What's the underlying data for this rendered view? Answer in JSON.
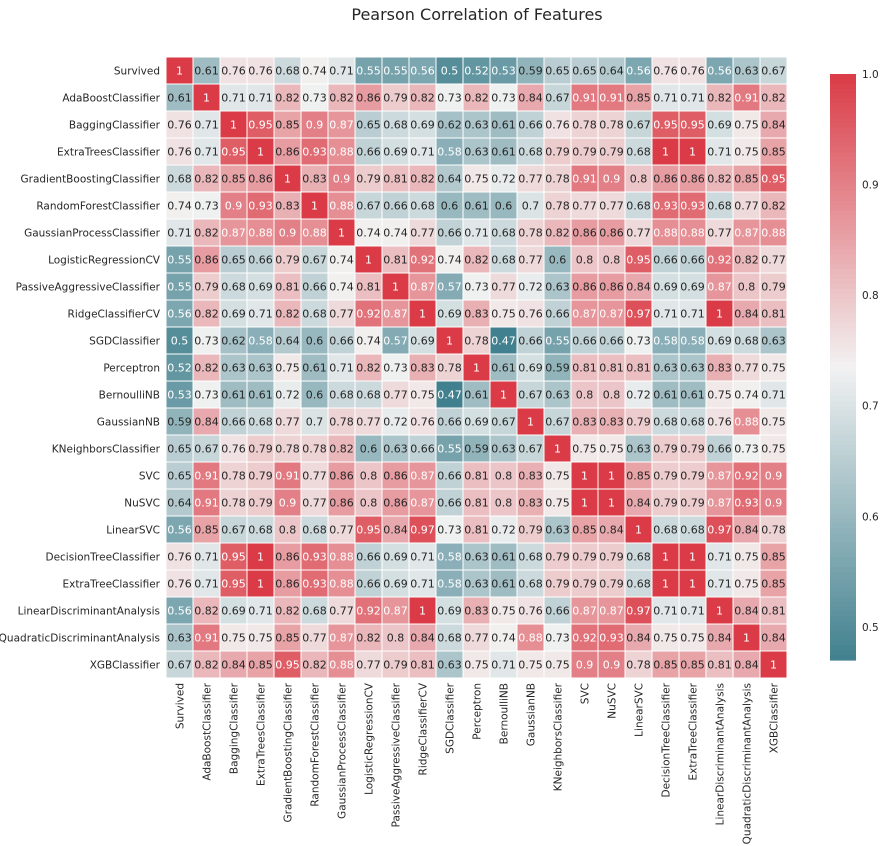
{
  "chart_data": {
    "type": "heatmap",
    "title": "Pearson Correlation of Features",
    "labels": [
      "Survived",
      "AdaBoostClassifier",
      "BaggingClassifier",
      "ExtraTreesClassifier",
      "GradientBoostingClassifier",
      "RandomForestClassifier",
      "GaussianProcessClassifier",
      "LogisticRegressionCV",
      "PassiveAggressiveClassifier",
      "RidgeClassifierCV",
      "SGDClassifier",
      "Perceptron",
      "BernoulliNB",
      "GaussianNB",
      "KNeighborsClassifier",
      "SVC",
      "NuSVC",
      "LinearSVC",
      "DecisionTreeClassifier",
      "ExtraTreeClassifier",
      "LinearDiscriminantAnalysis",
      "QuadraticDiscriminantAnalysis",
      "XGBClassifier"
    ],
    "matrix": [
      [
        1,
        0.61,
        0.76,
        0.76,
        0.68,
        0.74,
        0.71,
        0.55,
        0.55,
        0.56,
        0.5,
        0.52,
        0.53,
        0.59,
        0.65,
        0.65,
        0.64,
        0.56,
        0.76,
        0.76,
        0.56,
        0.63,
        0.67
      ],
      [
        0.61,
        1,
        0.71,
        0.71,
        0.82,
        0.73,
        0.82,
        0.86,
        0.79,
        0.82,
        0.73,
        0.82,
        0.73,
        0.84,
        0.67,
        0.91,
        0.91,
        0.85,
        0.71,
        0.71,
        0.82,
        0.91,
        0.82
      ],
      [
        0.76,
        0.71,
        1,
        0.95,
        0.85,
        0.9,
        0.87,
        0.65,
        0.68,
        0.69,
        0.62,
        0.63,
        0.61,
        0.66,
        0.76,
        0.78,
        0.78,
        0.67,
        0.95,
        0.95,
        0.69,
        0.75,
        0.84
      ],
      [
        0.76,
        0.71,
        0.95,
        1,
        0.86,
        0.93,
        0.88,
        0.66,
        0.69,
        0.71,
        0.58,
        0.63,
        0.61,
        0.68,
        0.79,
        0.79,
        0.79,
        0.68,
        1,
        1,
        0.71,
        0.75,
        0.85
      ],
      [
        0.68,
        0.82,
        0.85,
        0.86,
        1,
        0.83,
        0.9,
        0.79,
        0.81,
        0.82,
        0.64,
        0.75,
        0.72,
        0.77,
        0.78,
        0.91,
        0.9,
        0.8,
        0.86,
        0.86,
        0.82,
        0.85,
        0.95
      ],
      [
        0.74,
        0.73,
        0.9,
        0.93,
        0.83,
        1,
        0.88,
        0.67,
        0.66,
        0.68,
        0.6,
        0.61,
        0.6,
        0.7,
        0.78,
        0.77,
        0.77,
        0.68,
        0.93,
        0.93,
        0.68,
        0.77,
        0.82
      ],
      [
        0.71,
        0.82,
        0.87,
        0.88,
        0.9,
        0.88,
        1,
        0.74,
        0.74,
        0.77,
        0.66,
        0.71,
        0.68,
        0.78,
        0.82,
        0.86,
        0.86,
        0.77,
        0.88,
        0.88,
        0.77,
        0.87,
        0.88
      ],
      [
        0.55,
        0.86,
        0.65,
        0.66,
        0.79,
        0.67,
        0.74,
        1,
        0.81,
        0.92,
        0.74,
        0.82,
        0.68,
        0.77,
        0.6,
        0.8,
        0.8,
        0.95,
        0.66,
        0.66,
        0.92,
        0.82,
        0.77
      ],
      [
        0.55,
        0.79,
        0.68,
        0.69,
        0.81,
        0.66,
        0.74,
        0.81,
        1,
        0.87,
        0.57,
        0.73,
        0.77,
        0.72,
        0.63,
        0.86,
        0.86,
        0.84,
        0.69,
        0.69,
        0.87,
        0.8,
        0.79
      ],
      [
        0.56,
        0.82,
        0.69,
        0.71,
        0.82,
        0.68,
        0.77,
        0.92,
        0.87,
        1,
        0.69,
        0.83,
        0.75,
        0.76,
        0.66,
        0.87,
        0.87,
        0.97,
        0.71,
        0.71,
        1,
        0.84,
        0.81
      ],
      [
        0.5,
        0.73,
        0.62,
        0.58,
        0.64,
        0.6,
        0.66,
        0.74,
        0.57,
        0.69,
        1,
        0.78,
        0.47,
        0.66,
        0.55,
        0.66,
        0.66,
        0.73,
        0.58,
        0.58,
        0.69,
        0.68,
        0.63
      ],
      [
        0.52,
        0.82,
        0.63,
        0.63,
        0.75,
        0.61,
        0.71,
        0.82,
        0.73,
        0.83,
        0.78,
        1,
        0.61,
        0.69,
        0.59,
        0.81,
        0.81,
        0.81,
        0.63,
        0.63,
        0.83,
        0.77,
        0.75
      ],
      [
        0.53,
        0.73,
        0.61,
        0.61,
        0.72,
        0.6,
        0.68,
        0.68,
        0.77,
        0.75,
        0.47,
        0.61,
        1,
        0.67,
        0.63,
        0.8,
        0.8,
        0.72,
        0.61,
        0.61,
        0.75,
        0.74,
        0.71
      ],
      [
        0.59,
        0.84,
        0.66,
        0.68,
        0.77,
        0.7,
        0.78,
        0.77,
        0.72,
        0.76,
        0.66,
        0.69,
        0.67,
        1,
        0.67,
        0.83,
        0.83,
        0.79,
        0.68,
        0.68,
        0.76,
        0.88,
        0.75
      ],
      [
        0.65,
        0.67,
        0.76,
        0.79,
        0.78,
        0.78,
        0.82,
        0.6,
        0.63,
        0.66,
        0.55,
        0.59,
        0.63,
        0.67,
        1,
        0.75,
        0.75,
        0.63,
        0.79,
        0.79,
        0.66,
        0.73,
        0.75
      ],
      [
        0.65,
        0.91,
        0.78,
        0.79,
        0.91,
        0.77,
        0.86,
        0.8,
        0.86,
        0.87,
        0.66,
        0.81,
        0.8,
        0.83,
        0.75,
        1,
        1,
        0.85,
        0.79,
        0.79,
        0.87,
        0.92,
        0.9
      ],
      [
        0.64,
        0.91,
        0.78,
        0.79,
        0.9,
        0.77,
        0.86,
        0.8,
        0.86,
        0.87,
        0.66,
        0.81,
        0.8,
        0.83,
        0.75,
        1,
        1,
        0.84,
        0.79,
        0.79,
        0.87,
        0.93,
        0.9
      ],
      [
        0.56,
        0.85,
        0.67,
        0.68,
        0.8,
        0.68,
        0.77,
        0.95,
        0.84,
        0.97,
        0.73,
        0.81,
        0.72,
        0.79,
        0.63,
        0.85,
        0.84,
        1,
        0.68,
        0.68,
        0.97,
        0.84,
        0.78
      ],
      [
        0.76,
        0.71,
        0.95,
        1,
        0.86,
        0.93,
        0.88,
        0.66,
        0.69,
        0.71,
        0.58,
        0.63,
        0.61,
        0.68,
        0.79,
        0.79,
        0.79,
        0.68,
        1,
        1,
        0.71,
        0.75,
        0.85
      ],
      [
        0.76,
        0.71,
        0.95,
        1,
        0.86,
        0.93,
        0.88,
        0.66,
        0.69,
        0.71,
        0.58,
        0.63,
        0.61,
        0.68,
        0.79,
        0.79,
        0.79,
        0.68,
        1,
        1,
        0.71,
        0.75,
        0.85
      ],
      [
        0.56,
        0.82,
        0.69,
        0.71,
        0.82,
        0.68,
        0.77,
        0.92,
        0.87,
        1,
        0.69,
        0.83,
        0.75,
        0.76,
        0.66,
        0.87,
        0.87,
        0.97,
        0.71,
        0.71,
        1,
        0.84,
        0.81
      ],
      [
        0.63,
        0.91,
        0.75,
        0.75,
        0.85,
        0.77,
        0.87,
        0.82,
        0.8,
        0.84,
        0.68,
        0.77,
        0.74,
        0.88,
        0.73,
        0.92,
        0.93,
        0.84,
        0.75,
        0.75,
        0.84,
        1,
        0.84
      ],
      [
        0.67,
        0.82,
        0.84,
        0.85,
        0.95,
        0.82,
        0.88,
        0.77,
        0.79,
        0.81,
        0.63,
        0.75,
        0.71,
        0.75,
        0.75,
        0.9,
        0.9,
        0.78,
        0.85,
        0.85,
        0.81,
        0.84,
        1
      ]
    ],
    "vmin": 0.47,
    "vmax": 1.0,
    "colorbar_ticks": [
      0.5,
      0.6,
      0.7,
      0.8,
      0.9,
      1.0
    ],
    "colors": {
      "low": "#41808e",
      "mid": "#f2f2f2",
      "high": "#da3b46"
    }
  }
}
